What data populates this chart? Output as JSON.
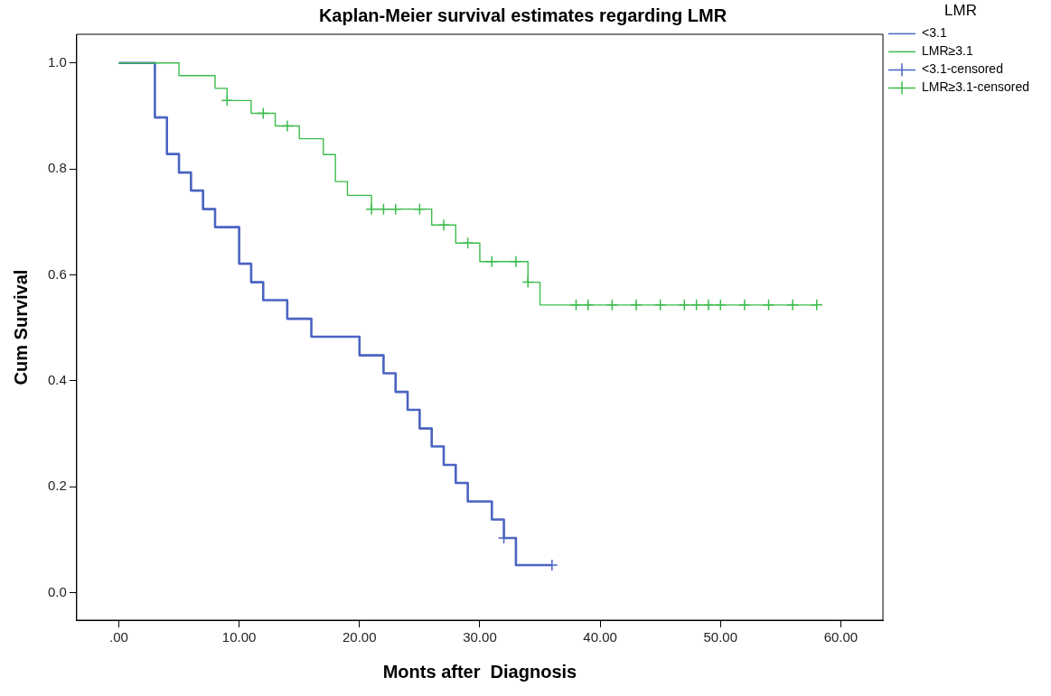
{
  "chart_data": {
    "type": "step",
    "title": "Kaplan-Meier survival estimates regarding LMR",
    "xlabel": "Monts after  Diagnosis",
    "ylabel": "Cum Survival",
    "legend_title": "LMR",
    "legend": "top right",
    "grid": false,
    "xlim": [
      -3.5,
      63.5
    ],
    "ylim": [
      -0.052,
      1.054
    ],
    "xticks": [
      {
        "value": 0,
        "label": ".00"
      },
      {
        "value": 10,
        "label": "10.00"
      },
      {
        "value": 20,
        "label": "20.00"
      },
      {
        "value": 30,
        "label": "30.00"
      },
      {
        "value": 40,
        "label": "40.00"
      },
      {
        "value": 50,
        "label": "50.00"
      },
      {
        "value": 60,
        "label": "60.00"
      }
    ],
    "yticks": [
      {
        "value": 0,
        "label": "0.0"
      },
      {
        "value": 0.2,
        "label": "0.2"
      },
      {
        "value": 0.4,
        "label": "0.4"
      },
      {
        "value": 0.6,
        "label": "0.6"
      },
      {
        "value": 0.8,
        "label": "0.8"
      },
      {
        "value": 1,
        "label": "1.0"
      }
    ],
    "series": [
      {
        "name": "<3.1",
        "color": "#4a64c2",
        "marker": "none",
        "x": [
          0,
          3,
          4,
          5,
          6,
          7,
          8,
          10,
          11,
          12,
          14,
          16,
          20,
          22,
          23,
          24,
          25,
          26,
          27,
          28,
          29,
          31,
          32,
          33,
          36
        ],
        "values": [
          1,
          0.897,
          0.828,
          0.793,
          0.759,
          0.724,
          0.69,
          0.621,
          0.586,
          0.552,
          0.517,
          0.483,
          0.448,
          0.414,
          0.379,
          0.345,
          0.31,
          0.276,
          0.241,
          0.207,
          0.172,
          0.138,
          0.103,
          0.052,
          0.052
        ]
      },
      {
        "name": "LMR≥3.1",
        "color": "#3dbb4c",
        "marker": "none",
        "x": [
          0,
          5,
          8,
          9,
          11,
          13,
          15,
          17,
          18,
          19,
          21,
          26,
          28,
          30,
          34,
          35,
          58
        ],
        "values": [
          1,
          0.976,
          0.952,
          0.929,
          0.905,
          0.881,
          0.857,
          0.827,
          0.776,
          0.75,
          0.724,
          0.694,
          0.66,
          0.625,
          0.586,
          0.543,
          0.543
        ]
      },
      {
        "name": "<3.1-censored",
        "type": "scatter",
        "color": "#4a64c2",
        "marker": "cross",
        "x": [
          32,
          36
        ],
        "values": [
          0.103,
          0.052
        ]
      },
      {
        "name": "LMR≥3.1-censored",
        "type": "scatter",
        "color": "#3dbb4c",
        "marker": "cross",
        "x": [
          9,
          12,
          14,
          21,
          22,
          23,
          25,
          27,
          29,
          31,
          33,
          34,
          38,
          39,
          41,
          43,
          45,
          47,
          48,
          49,
          50,
          52,
          54,
          56,
          58
        ],
        "values": [
          0.929,
          0.905,
          0.881,
          0.724,
          0.724,
          0.724,
          0.724,
          0.694,
          0.66,
          0.625,
          0.625,
          0.586,
          0.543,
          0.543,
          0.543,
          0.543,
          0.543,
          0.543,
          0.543,
          0.543,
          0.543,
          0.543,
          0.543,
          0.543,
          0.543
        ]
      }
    ]
  }
}
